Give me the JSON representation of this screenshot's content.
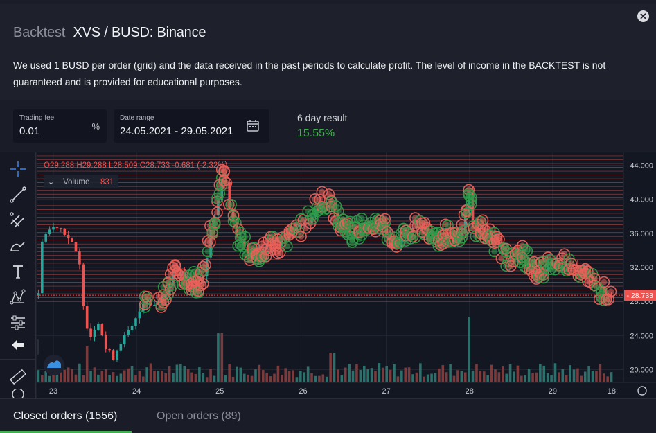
{
  "header": {
    "muted_title": "Backtest",
    "title": "XVS / BUSD: Binance",
    "description": "We used 1 BUSD per order (grid) and the data received in the past periods to calculate profit. The level of income in the BACKTEST is not guaranteed and is provided for educational purposes."
  },
  "controls": {
    "trading_fee": {
      "label": "Trading fee",
      "value": "0.01",
      "suffix": "%"
    },
    "date_range": {
      "label": "Date range",
      "value": "24.05.2021 - 29.05.2021"
    },
    "result": {
      "label": "6 day result",
      "value": "15.55%"
    }
  },
  "colors": {
    "up": "#26a69a",
    "down": "#ef5350",
    "buy_order": "#2e9a4a",
    "sell_order": "#e8605a",
    "accent": "#3fb24f"
  },
  "chart_data": {
    "type": "candlestick",
    "symbol": "XVS / BUSD",
    "ohlc_readout": {
      "O": "O29.288",
      "H": "H29.288",
      "L": "L28.509",
      "C": "C28.733",
      "change": "-0.681 (-2.32%)"
    },
    "volume_label": "Volume",
    "volume_value": "831",
    "last_price_label": "28.733",
    "last_price": 28.733,
    "y_ticks": [
      44,
      40,
      36,
      32,
      28,
      24,
      20
    ],
    "y_tick_labels": [
      "44.000",
      "40.000",
      "36.000",
      "32.000",
      "28.000",
      "24.000",
      "20.000"
    ],
    "y_range": [
      18.5,
      45.5
    ],
    "x_ticks": [
      "23",
      "24",
      "25",
      "26",
      "27",
      "28",
      "29",
      "18:"
    ],
    "x_range_days": [
      22.8,
      29.85
    ],
    "grid_levels": {
      "min": 28.0,
      "max": 46.0,
      "step": 0.45
    },
    "price_path": [
      [
        22.85,
        35.2
      ],
      [
        22.95,
        36.4
      ],
      [
        23.05,
        37.0
      ],
      [
        23.15,
        36.0
      ],
      [
        23.25,
        34.2
      ],
      [
        23.32,
        32.0
      ],
      [
        23.38,
        25.8
      ],
      [
        23.45,
        24.0
      ],
      [
        23.55,
        26.0
      ],
      [
        23.62,
        22.5
      ],
      [
        23.72,
        21.5
      ],
      [
        23.82,
        23.5
      ],
      [
        23.92,
        24.5
      ],
      [
        24.0,
        26.0
      ],
      [
        24.1,
        28.5
      ],
      [
        24.2,
        27.5
      ],
      [
        24.3,
        28.5
      ],
      [
        24.38,
        29.5
      ],
      [
        24.45,
        31.5
      ],
      [
        24.55,
        31.0
      ],
      [
        24.65,
        30.5
      ],
      [
        24.75,
        30.0
      ],
      [
        24.82,
        31.5
      ],
      [
        24.88,
        36.0
      ],
      [
        24.96,
        38.5
      ],
      [
        25.04,
        43.5
      ],
      [
        25.12,
        39.0
      ],
      [
        25.2,
        36.0
      ],
      [
        25.3,
        34.5
      ],
      [
        25.4,
        33.0
      ],
      [
        25.5,
        34.0
      ],
      [
        25.62,
        35.0
      ],
      [
        25.72,
        34.5
      ],
      [
        25.82,
        35.5
      ],
      [
        25.92,
        36.5
      ],
      [
        26.02,
        37.0
      ],
      [
        26.12,
        38.5
      ],
      [
        26.22,
        40.0
      ],
      [
        26.32,
        39.5
      ],
      [
        26.42,
        38.0
      ],
      [
        26.52,
        36.5
      ],
      [
        26.62,
        36.0
      ],
      [
        26.72,
        37.0
      ],
      [
        26.82,
        36.5
      ],
      [
        26.92,
        37.5
      ],
      [
        27.02,
        36.0
      ],
      [
        27.12,
        34.5
      ],
      [
        27.22,
        35.5
      ],
      [
        27.32,
        36.5
      ],
      [
        27.42,
        37.0
      ],
      [
        27.52,
        36.5
      ],
      [
        27.62,
        35.5
      ],
      [
        27.72,
        36.0
      ],
      [
        27.82,
        35.0
      ],
      [
        27.92,
        36.5
      ],
      [
        28.0,
        41.0
      ],
      [
        28.06,
        35.5
      ],
      [
        28.15,
        37.0
      ],
      [
        28.25,
        35.5
      ],
      [
        28.35,
        34.5
      ],
      [
        28.45,
        33.0
      ],
      [
        28.55,
        32.5
      ],
      [
        28.65,
        33.5
      ],
      [
        28.75,
        32.0
      ],
      [
        28.85,
        31.5
      ],
      [
        28.95,
        32.5
      ],
      [
        29.05,
        32.0
      ],
      [
        29.15,
        32.5
      ],
      [
        29.25,
        32.5
      ],
      [
        29.35,
        31.5
      ],
      [
        29.45,
        30.5
      ],
      [
        29.55,
        29.5
      ],
      [
        29.62,
        29.2
      ],
      [
        29.7,
        28.73
      ]
    ],
    "volume_spikes": [
      [
        25.0,
        0.75
      ],
      [
        28.0,
        1.0
      ],
      [
        23.4,
        0.55
      ],
      [
        26.35,
        0.45
      ]
    ]
  },
  "tabs": [
    {
      "label": "Closed orders (1556)"
    },
    {
      "label": "Open orders (89)"
    }
  ]
}
